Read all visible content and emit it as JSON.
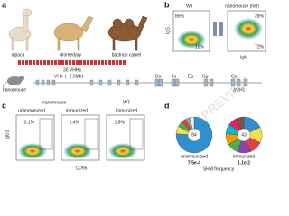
{
  "panel_a": {
    "letter": "a",
    "animals": [
      "alpaca",
      "dromedary",
      "bactrian camel"
    ],
    "vhh_label": "30 VHHs",
    "mouse_label": "nanomouse",
    "locus": {
      "vh": "VHs",
      "size": "(~2.5Mb)",
      "ds": "Ds",
      "js": "Js",
      "emu": "Eμ",
      "cmu": "Cμ",
      "cg1": "Cγ1",
      "delta": "ΔCH1"
    }
  },
  "panel_b": {
    "letter": "b",
    "wt": "WT",
    "het": "nanomouse (het)",
    "wt_top": "85%",
    "wt_bottom": "15%",
    "het_top": "28%",
    "het_bottom": "72%",
    "y_label": "IgG",
    "x_label": "IgM"
  },
  "panel_c": {
    "letter": "c",
    "group_nano": "nanomouse",
    "group_wt": "WT",
    "unimmunized": "unimmunized",
    "immunized": "immunized",
    "immunized_wt": "immunized",
    "y_label": "IgG1",
    "gates": [
      "0.1%",
      "1.4%",
      "1.8%"
    ],
    "x_label": "CD95"
  },
  "panel_d": {
    "letter": "d",
    "pies": [
      {
        "count": "84",
        "label": "unimmunized",
        "freq": "7.5e-4",
        "slices": [
          76,
          7,
          5,
          4,
          4,
          4
        ],
        "colors": [
          "#2f8fd1",
          "#f3e04a",
          "#4caf50",
          "#e04040",
          "#9e9e9e",
          "#f0f0f0"
        ]
      },
      {
        "count": "43",
        "label": "immunized",
        "freq": "1.1e-2",
        "slices": [
          18,
          14,
          12,
          12,
          10,
          10,
          9,
          8,
          7
        ],
        "colors": [
          "#2f8fd1",
          "#f3e04a",
          "#e04040",
          "#8e44ad",
          "#4caf50",
          "#ff9800",
          "#00bcd4",
          "#e91e63",
          "#795548"
        ]
      }
    ],
    "axis_label": "SHM frequency"
  },
  "watermark": "PREVIEW"
}
